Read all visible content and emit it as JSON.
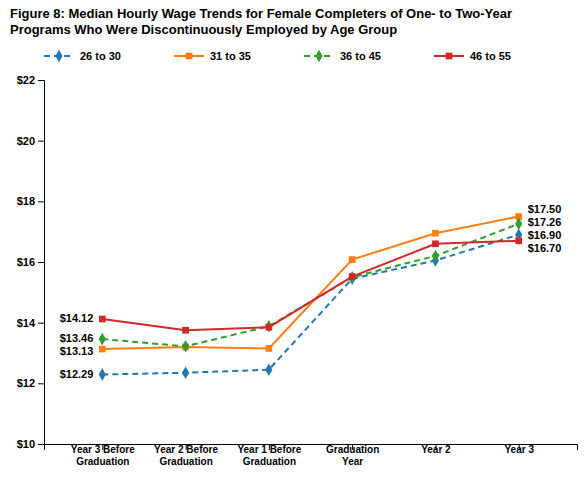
{
  "chart_data": {
    "type": "line",
    "title": "Figure 8: Median Hourly Wage Trends for Female Completers of One- to Two-Year\nPrograms Who Were Discontinuously Employed by Age Group",
    "categories": [
      "Year 3 Before\nGraduation",
      "Year 2 Before\nGraduation",
      "Year 1 Before\nGraduation",
      "Graduation\nYear",
      "Year 2",
      "Year 3"
    ],
    "series": [
      {
        "name": "26 to 30",
        "values": [
          12.29,
          12.35,
          12.45,
          15.45,
          16.05,
          16.9
        ],
        "marker": "diamond",
        "line_style": "dashed"
      },
      {
        "name": "31 to 35",
        "values": [
          13.13,
          13.2,
          13.15,
          16.08,
          16.95,
          17.5
        ],
        "marker": "square",
        "line_style": "solid"
      },
      {
        "name": "36 to 45",
        "values": [
          13.46,
          13.22,
          13.88,
          15.5,
          16.2,
          17.26
        ],
        "marker": "diamond",
        "line_style": "dashed"
      },
      {
        "name": "46 to 55",
        "values": [
          14.12,
          13.75,
          13.85,
          15.52,
          16.6,
          16.7
        ],
        "marker": "square",
        "line_style": "solid"
      }
    ],
    "ylim": [
      10,
      22
    ],
    "yticks": [
      {
        "value": 10,
        "label": "$10"
      },
      {
        "value": 12,
        "label": "$12"
      },
      {
        "value": 14,
        "label": "$14"
      },
      {
        "value": 16,
        "label": "$16"
      },
      {
        "value": 18,
        "label": "$18"
      },
      {
        "value": 20,
        "label": "$20"
      },
      {
        "value": 22,
        "label": "$22"
      }
    ],
    "grid": false,
    "legend": "top",
    "annotations": [
      {
        "text": "$12.29",
        "series": 0,
        "index": 0
      },
      {
        "text": "$13.13",
        "series": 1,
        "index": 0
      },
      {
        "text": "$13.46",
        "series": 2,
        "index": 0
      },
      {
        "text": "$14.12",
        "series": 3,
        "index": 0
      },
      {
        "text": "$17.50",
        "series": 1,
        "index": 5
      },
      {
        "text": "$17.26",
        "series": 2,
        "index": 5
      },
      {
        "text": "$16.90",
        "series": 0,
        "index": 5
      },
      {
        "text": "$16.70",
        "series": 3,
        "index": 5
      }
    ]
  }
}
